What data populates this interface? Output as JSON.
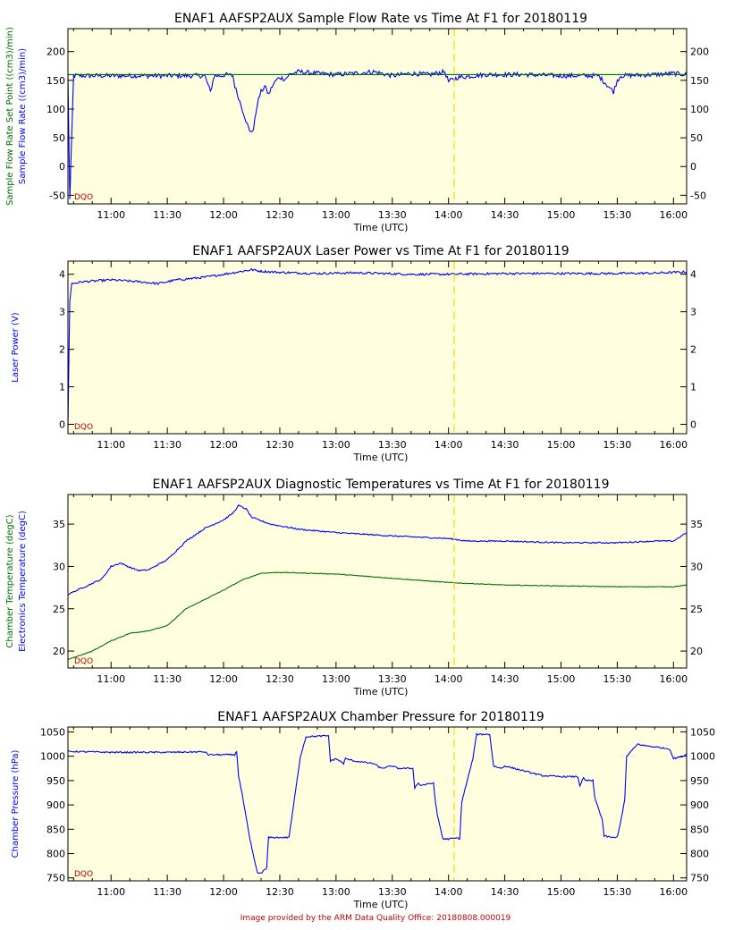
{
  "colors": {
    "plot_bg": "#ffffe0",
    "blue": "#0000ff",
    "green": "#007000",
    "marker_line": "#ffd700",
    "dqo": "#c00000",
    "text": "#000000"
  },
  "footer_text": "Image provided by the ARM Data Quality Office: 20180808.000019",
  "dqo_label": "DQO",
  "chart_data": [
    {
      "type": "line",
      "title": "ENAF1 AAFSP2AUX Sample Flow Rate vs Time At F1 for 20180119",
      "xlabel": "Time (UTC)",
      "ylabel_primary": "Sample Flow Rate ((cm3)/min)",
      "ylabel_secondary": "Sample Flow Rate Set Point ((cm3)/min)",
      "xlim": [
        "10:37",
        "16:07"
      ],
      "x_ticks": [
        "11:00",
        "11:30",
        "12:00",
        "12:30",
        "13:00",
        "13:30",
        "14:00",
        "14:30",
        "15:00",
        "15:30",
        "16:00"
      ],
      "ylim": [
        -65,
        240
      ],
      "y_ticks": [
        -50,
        0,
        50,
        100,
        150,
        200
      ],
      "vertical_marker": "14:03",
      "series": [
        {
          "name": "Sample Flow Rate",
          "color": "#0000ff",
          "noise": 4,
          "x": [
            "10:37",
            "10:38",
            "10:40",
            "11:00",
            "11:30",
            "11:50",
            "11:53",
            "11:55",
            "11:59",
            "12:01",
            "12:05",
            "12:06",
            "12:08",
            "12:10",
            "12:12",
            "12:14",
            "12:16",
            "12:18",
            "12:20",
            "12:22",
            "12:24",
            "12:26",
            "12:28",
            "12:30",
            "12:33",
            "12:35",
            "12:40",
            "12:50",
            "13:00",
            "13:10",
            "13:20",
            "13:30",
            "13:40",
            "13:50",
            "13:58",
            "14:00",
            "14:05",
            "14:20",
            "14:40",
            "15:00",
            "15:20",
            "15:28",
            "15:30",
            "15:32",
            "15:50",
            "16:00",
            "16:07"
          ],
          "y": [
            158,
            -58,
            158,
            158,
            158,
            158,
            130,
            158,
            158,
            160,
            158,
            140,
            120,
            100,
            80,
            60,
            65,
            110,
            130,
            140,
            125,
            140,
            150,
            155,
            152,
            160,
            165,
            162,
            160,
            162,
            165,
            158,
            162,
            160,
            165,
            148,
            155,
            160,
            160,
            158,
            158,
            130,
            150,
            158,
            160,
            162,
            160
          ]
        },
        {
          "name": "Sample Flow Rate Set Point",
          "color": "#007000",
          "noise": 0,
          "x": [
            "10:37",
            "16:07"
          ],
          "y": [
            160,
            160
          ]
        }
      ]
    },
    {
      "type": "line",
      "title": "ENAF1 AAFSP2AUX Laser Power vs Time At F1 for 20180119",
      "xlabel": "Time (UTC)",
      "ylabel_primary": "Laser Power (V)",
      "xlim": [
        "10:37",
        "16:07"
      ],
      "x_ticks": [
        "11:00",
        "11:30",
        "12:00",
        "12:30",
        "13:00",
        "13:30",
        "14:00",
        "14:30",
        "15:00",
        "15:30",
        "16:00"
      ],
      "ylim": [
        -0.25,
        4.35
      ],
      "y_ticks": [
        0,
        1,
        2,
        3,
        4
      ],
      "vertical_marker": "14:03",
      "series": [
        {
          "name": "Laser Power",
          "color": "#0000ff",
          "noise": 0.03,
          "x": [
            "10:37",
            "10:38",
            "10:39",
            "10:45",
            "11:00",
            "11:15",
            "11:25",
            "11:35",
            "11:50",
            "12:00",
            "12:10",
            "12:15",
            "12:20",
            "12:30",
            "12:50",
            "13:10",
            "13:40",
            "14:00",
            "14:30",
            "15:00",
            "15:30",
            "15:50",
            "16:00",
            "16:07"
          ],
          "y": [
            -0.05,
            3.3,
            3.75,
            3.8,
            3.85,
            3.8,
            3.75,
            3.85,
            3.92,
            4.0,
            4.08,
            4.12,
            4.08,
            4.05,
            4.02,
            4.04,
            4.0,
            4.0,
            4.02,
            4.02,
            4.02,
            4.03,
            4.05,
            4.06
          ]
        }
      ]
    },
    {
      "type": "line",
      "title": "ENAF1 AAFSP2AUX Diagnostic Temperatures vs Time At F1 for 20180119",
      "xlabel": "Time (UTC)",
      "ylabel_primary": "Electronics Temperature (degC)",
      "ylabel_secondary": "Chamber Temperature (degC)",
      "xlim": [
        "10:37",
        "16:07"
      ],
      "x_ticks": [
        "11:00",
        "11:30",
        "12:00",
        "12:30",
        "13:00",
        "13:30",
        "14:00",
        "14:30",
        "15:00",
        "15:30",
        "16:00"
      ],
      "ylim": [
        18,
        38.5
      ],
      "y_ticks": [
        20,
        25,
        30,
        35
      ],
      "vertical_marker": "14:03",
      "series": [
        {
          "name": "Electronics Temperature",
          "color": "#0000ff",
          "noise": 0.08,
          "x": [
            "10:37",
            "10:45",
            "10:55",
            "11:00",
            "11:05",
            "11:10",
            "11:15",
            "11:20",
            "11:30",
            "11:40",
            "11:50",
            "12:00",
            "12:05",
            "12:08",
            "12:12",
            "12:15",
            "12:25",
            "12:40",
            "13:00",
            "13:30",
            "14:00",
            "14:10",
            "14:30",
            "15:00",
            "15:30",
            "15:50",
            "16:00",
            "16:07"
          ],
          "y": [
            26.7,
            27.5,
            28.5,
            30.0,
            30.4,
            29.9,
            29.5,
            29.6,
            30.8,
            33.0,
            34.5,
            35.5,
            36.3,
            37.2,
            36.8,
            35.8,
            35.0,
            34.4,
            34.0,
            33.6,
            33.3,
            33.0,
            33.0,
            32.8,
            32.8,
            33.0,
            33.0,
            34.0
          ]
        },
        {
          "name": "Chamber Temperature",
          "color": "#007000",
          "noise": 0.04,
          "x": [
            "10:37",
            "10:50",
            "11:00",
            "11:10",
            "11:20",
            "11:30",
            "11:40",
            "12:00",
            "12:10",
            "12:20",
            "12:30",
            "13:00",
            "13:30",
            "14:00",
            "14:30",
            "15:00",
            "15:30",
            "16:00",
            "16:07"
          ],
          "y": [
            19.0,
            20.0,
            21.2,
            22.1,
            22.4,
            23.0,
            25.0,
            27.2,
            28.4,
            29.2,
            29.3,
            29.1,
            28.6,
            28.1,
            27.8,
            27.7,
            27.6,
            27.6,
            27.8
          ]
        }
      ]
    },
    {
      "type": "line",
      "title": "ENAF1 AAFSP2AUX Chamber Pressure for 20180119",
      "xlabel": "Time (UTC)",
      "ylabel_primary": "Chamber Pressure (hPa)",
      "xlim": [
        "10:37",
        "16:07"
      ],
      "x_ticks": [
        "11:00",
        "11:30",
        "12:00",
        "12:30",
        "13:00",
        "13:30",
        "14:00",
        "14:30",
        "15:00",
        "15:30",
        "16:00"
      ],
      "ylim": [
        744,
        1060
      ],
      "y_ticks": [
        750,
        800,
        850,
        900,
        950,
        1000,
        1050
      ],
      "vertical_marker": "14:03",
      "series": [
        {
          "name": "Chamber Pressure",
          "color": "#0000ff",
          "noise": 1.5,
          "x": [
            "10:37",
            "11:00",
            "11:30",
            "11:50",
            "11:52",
            "12:00",
            "12:06",
            "12:07",
            "12:08",
            "12:10",
            "12:14",
            "12:18",
            "12:20",
            "12:23",
            "12:24",
            "12:34",
            "12:35",
            "12:41",
            "12:44",
            "12:56",
            "12:57",
            "13:00",
            "13:04",
            "13:05",
            "13:10",
            "13:20",
            "13:24",
            "13:30",
            "13:33",
            "13:41",
            "13:42",
            "13:44",
            "13:45",
            "13:52",
            "13:53",
            "13:54",
            "13:57",
            "14:00",
            "14:05",
            "14:06",
            "14:07",
            "14:13",
            "14:15",
            "14:22",
            "14:24",
            "14:28",
            "14:30",
            "14:45",
            "14:50",
            "15:00",
            "15:09",
            "15:10",
            "15:12",
            "15:13",
            "15:17",
            "15:18",
            "15:22",
            "15:23",
            "15:29",
            "15:30",
            "15:31",
            "15:34",
            "15:35",
            "15:41",
            "15:44",
            "15:58",
            "16:00",
            "16:05",
            "16:07"
          ],
          "y": [
            1010,
            1008,
            1008,
            1009,
            1003,
            1003,
            1003,
            1010,
            960,
            920,
            830,
            760,
            760,
            770,
            833,
            833,
            835,
            1000,
            1040,
            1042,
            990,
            995,
            985,
            995,
            990,
            985,
            975,
            980,
            975,
            975,
            935,
            945,
            940,
            945,
            905,
            880,
            830,
            830,
            832,
            830,
            905,
            995,
            1045,
            1045,
            980,
            975,
            980,
            965,
            960,
            958,
            958,
            940,
            955,
            950,
            950,
            915,
            870,
            836,
            832,
            835,
            850,
            910,
            1000,
            1025,
            1022,
            1015,
            995,
            1000,
            1005
          ]
        }
      ]
    }
  ]
}
